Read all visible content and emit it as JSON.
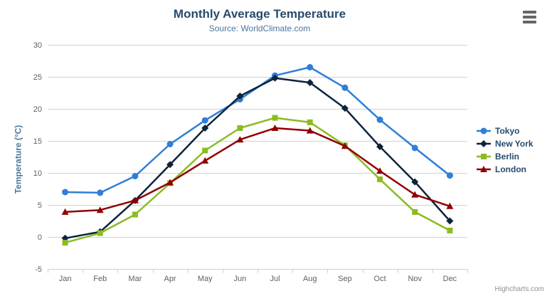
{
  "chart": {
    "title": "Monthly Average Temperature",
    "subtitle": "Source: WorldClimate.com",
    "credits": "Highcharts.com",
    "menu_icon": "hamburger-menu-icon"
  },
  "chart_data": {
    "type": "line",
    "title": "Monthly Average Temperature",
    "subtitle": "Source: WorldClimate.com",
    "categories": [
      "Jan",
      "Feb",
      "Mar",
      "Apr",
      "May",
      "Jun",
      "Jul",
      "Aug",
      "Sep",
      "Oct",
      "Nov",
      "Dec"
    ],
    "series": [
      {
        "name": "Tokyo",
        "color": "#2f7ed8",
        "marker": "circle",
        "values": [
          7.0,
          6.9,
          9.5,
          14.5,
          18.2,
          21.5,
          25.2,
          26.5,
          23.3,
          18.3,
          13.9,
          9.6
        ]
      },
      {
        "name": "New York",
        "color": "#0d233a",
        "marker": "diamond",
        "values": [
          -0.2,
          0.8,
          5.7,
          11.3,
          17.0,
          22.0,
          24.8,
          24.1,
          20.1,
          14.1,
          8.6,
          2.5
        ]
      },
      {
        "name": "Berlin",
        "color": "#8bbc21",
        "marker": "square",
        "values": [
          -0.9,
          0.6,
          3.5,
          8.4,
          13.5,
          17.0,
          18.6,
          17.9,
          14.3,
          9.0,
          3.9,
          1.0
        ]
      },
      {
        "name": "London",
        "color": "#910000",
        "marker": "triangle",
        "values": [
          3.9,
          4.2,
          5.7,
          8.5,
          11.9,
          15.2,
          17.0,
          16.6,
          14.2,
          10.3,
          6.6,
          4.8
        ]
      }
    ],
    "xlabel": "",
    "ylabel": "Temperature (°C)",
    "ylim": [
      -5,
      30
    ],
    "y_ticks": [
      -5,
      0,
      5,
      10,
      15,
      20,
      25,
      30
    ],
    "grid": "horizontal",
    "legend_position": "right",
    "colors": {
      "grid_line": "#d0d0d0",
      "axis_line": "#c0d0e0",
      "tick_label": "#606060",
      "title": "#274b6d",
      "subtitle": "#4d759e",
      "legend_text": "#274b6d",
      "credits_text": "#909090"
    }
  }
}
